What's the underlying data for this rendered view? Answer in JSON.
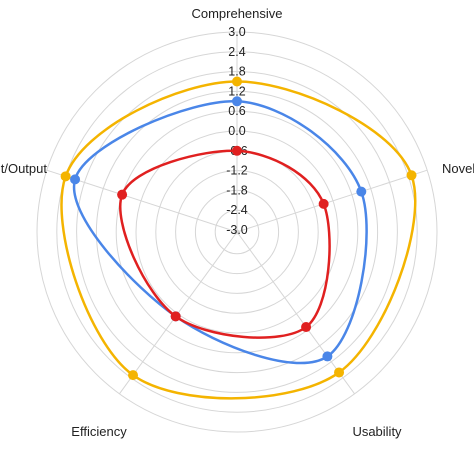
{
  "chart_data": {
    "type": "radar",
    "axes": [
      "Comprehensive",
      "Novelty",
      "Usability",
      "Efficiency",
      "Input/Output"
    ],
    "ticks": [
      "-3.0",
      "-2.4",
      "-1.8",
      "-1.2",
      "-0.6",
      "0.0",
      "0.6",
      "1.2",
      "1.8",
      "2.4",
      "3.0"
    ],
    "range": [
      -3.0,
      3.0
    ],
    "grid": true,
    "series": [
      {
        "color": "#F4B400",
        "values": [
          1.5,
          2.5,
          2.2,
          2.3,
          2.4
        ]
      },
      {
        "color": "#4A86E8",
        "values": [
          0.9,
          0.9,
          1.6,
          0.1,
          2.1
        ]
      },
      {
        "color": "#E02020",
        "values": [
          -0.6,
          -0.3,
          0.5,
          0.1,
          0.6
        ]
      }
    ]
  }
}
